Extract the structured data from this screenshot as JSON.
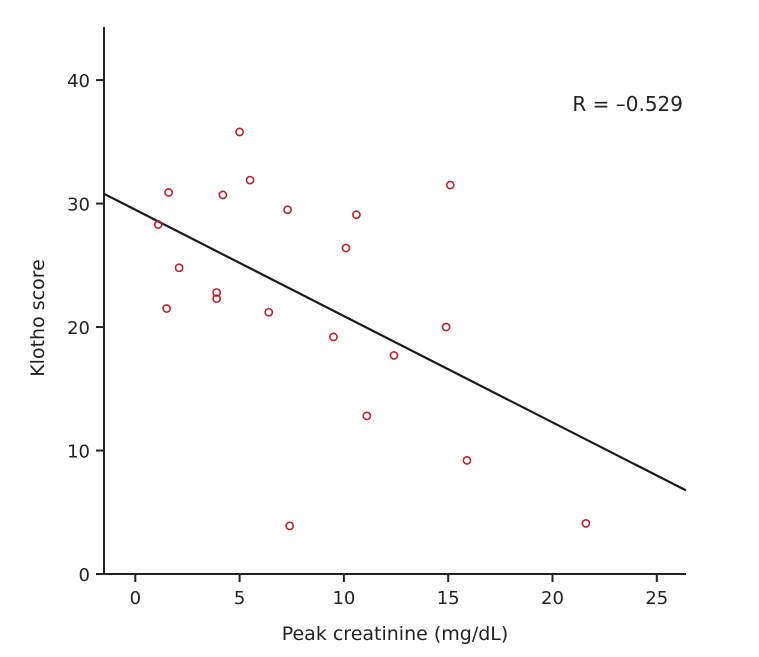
{
  "chart_data": {
    "type": "scatter",
    "xlabel": "Peak creatinine (mg/dL)",
    "ylabel": "Klotho score",
    "xlim": [
      -1.5,
      26.4
    ],
    "ylim": [
      0,
      44.3
    ],
    "xticks": [
      0,
      5,
      10,
      15,
      20,
      25
    ],
    "yticks": [
      0,
      10,
      20,
      30,
      40
    ],
    "grid": false,
    "annotation": "R = –0.529",
    "point_color": "#b0272e",
    "line_color": "#1a1a1a",
    "points": [
      {
        "x": 5.0,
        "y": 35.8
      },
      {
        "x": 1.6,
        "y": 30.9
      },
      {
        "x": 4.2,
        "y": 30.7
      },
      {
        "x": 5.5,
        "y": 31.9
      },
      {
        "x": 7.3,
        "y": 29.5
      },
      {
        "x": 10.6,
        "y": 29.1
      },
      {
        "x": 15.1,
        "y": 31.5
      },
      {
        "x": 1.1,
        "y": 28.3
      },
      {
        "x": 2.1,
        "y": 24.8
      },
      {
        "x": 10.1,
        "y": 26.4
      },
      {
        "x": 3.9,
        "y": 22.8
      },
      {
        "x": 3.9,
        "y": 22.3
      },
      {
        "x": 1.5,
        "y": 21.5
      },
      {
        "x": 6.4,
        "y": 21.2
      },
      {
        "x": 9.5,
        "y": 19.2
      },
      {
        "x": 14.9,
        "y": 20.0
      },
      {
        "x": 12.4,
        "y": 17.7
      },
      {
        "x": 11.1,
        "y": 12.8
      },
      {
        "x": 15.9,
        "y": 9.2
      },
      {
        "x": 7.4,
        "y": 3.9
      },
      {
        "x": 21.6,
        "y": 4.1
      }
    ],
    "regression": {
      "intercept": 29.5,
      "slope": -0.861
    }
  }
}
